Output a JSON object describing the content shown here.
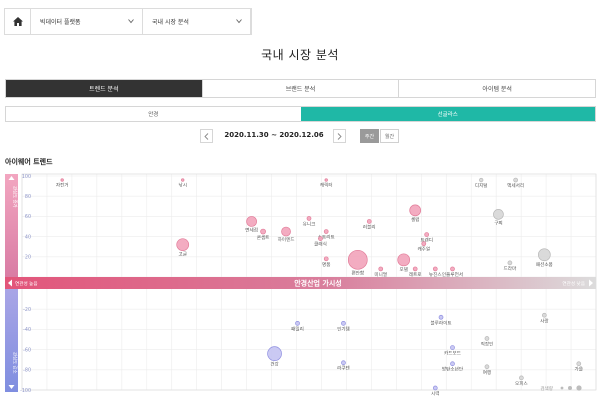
{
  "breadcrumb": {
    "home_icon": "home-icon",
    "items": [
      {
        "label": "빅데이터 플랫폼"
      },
      {
        "label": "국내 시장 분석"
      }
    ]
  },
  "page": {
    "title": "국내 시장 분석"
  },
  "main_tabs": [
    {
      "label": "트렌드 분석",
      "active": true
    },
    {
      "label": "브랜드 분석",
      "active": false
    },
    {
      "label": "아이템 분석",
      "active": false
    }
  ],
  "sub_tabs": [
    {
      "label": "안경",
      "active": false
    },
    {
      "label": "선글라스",
      "active": true
    }
  ],
  "date_nav": {
    "range": "2020.11.30 ~ 2020.12.06",
    "period_options": [
      {
        "label": "주간",
        "active": true
      },
      {
        "label": "월간",
        "active": false
      }
    ]
  },
  "section": {
    "title": "아이웨어 트렌드"
  },
  "colors": {
    "accent_teal": "#1fb8a6",
    "dark_tab": "#333333",
    "pink": "#e98aa2",
    "purple": "#a3a3ee",
    "gray": "#c8c8c8"
  },
  "chart_data": {
    "type": "scatter",
    "title": "",
    "ylim": [
      -100,
      100
    ],
    "y_ticks": [
      100,
      80,
      60,
      40,
      20,
      0,
      -20,
      -40,
      -60,
      -80,
      -100
    ],
    "top_axis_label": "관심도 증가",
    "bottom_axis_label": "관심도 감소",
    "center_band_label": "안경산업 가시성",
    "left_band_label": "연관성 높음",
    "right_band_label": "연관성 낮음",
    "size_legend_label": "검색량",
    "points": [
      {
        "label": "자전거",
        "x": 0.07,
        "y": 96,
        "r": 1.3,
        "color": "pink"
      },
      {
        "label": "낚시",
        "x": 0.28,
        "y": 96,
        "r": 1.3,
        "color": "pink"
      },
      {
        "label": "캐릭터",
        "x": 0.53,
        "y": 96,
        "r": 1.3,
        "color": "pink"
      },
      {
        "label": "고글",
        "x": 0.28,
        "y": 32,
        "r": 6,
        "color": "pink"
      },
      {
        "label": "면세점",
        "x": 0.4,
        "y": 55,
        "r": 5,
        "color": "pink"
      },
      {
        "label": "콘셉트",
        "x": 0.42,
        "y": 45,
        "r": 2.5,
        "color": "pink"
      },
      {
        "label": "하이엔드",
        "x": 0.46,
        "y": 45,
        "r": 4.5,
        "color": "pink"
      },
      {
        "label": "유니크",
        "x": 0.5,
        "y": 58,
        "r": 2,
        "color": "pink"
      },
      {
        "label": "스트리트",
        "x": 0.53,
        "y": 45,
        "r": 2,
        "color": "pink"
      },
      {
        "label": "클래식",
        "x": 0.52,
        "y": 38,
        "r": 2,
        "color": "pink"
      },
      {
        "label": "명품",
        "x": 0.53,
        "y": 18,
        "r": 2,
        "color": "pink"
      },
      {
        "label": "편안함",
        "x": 0.585,
        "y": 17,
        "r": 9.5,
        "color": "pink"
      },
      {
        "label": "러블리",
        "x": 0.605,
        "y": 55,
        "r": 2,
        "color": "pink"
      },
      {
        "label": "미니멀",
        "x": 0.625,
        "y": 8,
        "r": 2,
        "color": "pink"
      },
      {
        "label": "모델",
        "x": 0.665,
        "y": 17,
        "r": 6,
        "color": "pink"
      },
      {
        "label": "셀럽",
        "x": 0.685,
        "y": 66,
        "r": 5.5,
        "color": "pink"
      },
      {
        "label": "트렌디",
        "x": 0.705,
        "y": 42,
        "r": 2,
        "color": "pink"
      },
      {
        "label": "캐주얼",
        "x": 0.7,
        "y": 33,
        "r": 2,
        "color": "pink"
      },
      {
        "label": "레트로",
        "x": 0.685,
        "y": 8,
        "r": 2,
        "color": "pink"
      },
      {
        "label": "뉴진스",
        "x": 0.72,
        "y": 8,
        "r": 2,
        "color": "pink"
      },
      {
        "label": "인플루언서",
        "x": 0.75,
        "y": 8,
        "r": 2,
        "color": "pink"
      },
      {
        "label": "디지털",
        "x": 0.8,
        "y": 96,
        "r": 1.8,
        "color": "gray"
      },
      {
        "label": "액세서리",
        "x": 0.86,
        "y": 96,
        "r": 2,
        "color": "gray"
      },
      {
        "label": "구찌",
        "x": 0.83,
        "y": 62,
        "r": 5,
        "color": "gray"
      },
      {
        "label": "드라마",
        "x": 0.85,
        "y": 14,
        "r": 2,
        "color": "gray"
      },
      {
        "label": "패션소품",
        "x": 0.91,
        "y": 22,
        "r": 6,
        "color": "gray"
      },
      {
        "label": "사랑",
        "x": 0.91,
        "y": -26,
        "r": 2,
        "color": "gray"
      },
      {
        "label": "가을",
        "x": 0.97,
        "y": -74,
        "r": 2,
        "color": "gray"
      },
      {
        "label": "오피스",
        "x": 0.87,
        "y": -88,
        "r": 2,
        "color": "gray"
      },
      {
        "label": "직장인",
        "x": 0.81,
        "y": -49,
        "r": 2,
        "color": "gray"
      },
      {
        "label": "여행",
        "x": 0.81,
        "y": -77,
        "r": 2,
        "color": "gray"
      },
      {
        "label": "블루라이트",
        "x": 0.73,
        "y": -28,
        "r": 2,
        "color": "purple"
      },
      {
        "label": "카드보드",
        "x": 0.75,
        "y": -58,
        "r": 2,
        "color": "purple"
      },
      {
        "label": "방탄소년단",
        "x": 0.75,
        "y": -74,
        "r": 2,
        "color": "purple"
      },
      {
        "label": "시력",
        "x": 0.72,
        "y": -98,
        "r": 2,
        "color": "purple"
      },
      {
        "label": "패밀리",
        "x": 0.48,
        "y": -34,
        "r": 2,
        "color": "purple"
      },
      {
        "label": "인기템",
        "x": 0.56,
        "y": -34,
        "r": 2,
        "color": "purple"
      },
      {
        "label": "건강",
        "x": 0.44,
        "y": -64,
        "r": 7,
        "color": "purple"
      },
      {
        "label": "라쿠텐",
        "x": 0.56,
        "y": -73,
        "r": 2,
        "color": "purple"
      }
    ]
  }
}
